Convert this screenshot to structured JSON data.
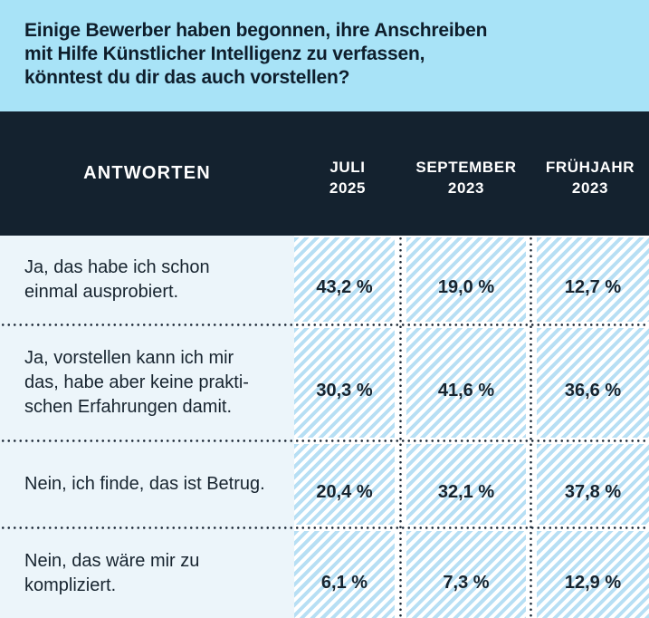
{
  "question": {
    "text": "Einige Bewerber haben begonnen, ihre Anschreiben\nmit Hilfe Künstlicher Intelligenz zu verfassen,\nkönntest du dir das auch vorstellen?"
  },
  "table": {
    "header": {
      "answers_label": "ANTWORTEN",
      "columns": [
        {
          "label": "JULI\n2025"
        },
        {
          "label": "SEPTEMBER\n2023"
        },
        {
          "label": "FRÜHJAHR\n2023"
        }
      ]
    },
    "rows": [
      {
        "answer": "Ja, das habe ich schon\neinmal ausprobiert.",
        "values": [
          "43,2 %",
          "19,0 %",
          "12,7 %"
        ]
      },
      {
        "answer": "Ja, vorstellen kann ich mir\ndas, habe aber keine prakti-\nschen Erfahrungen damit.",
        "values": [
          "30,3 %",
          "41,6 %",
          "36,6 %"
        ]
      },
      {
        "answer": "Nein, ich finde, das ist Betrug.",
        "values": [
          "20,4 %",
          "32,1 %",
          "37,8 %"
        ]
      },
      {
        "answer": "Nein, das wäre mir zu\nkompliziert.",
        "values": [
          "6,1 %",
          "7,3 %",
          "12,9 %"
        ]
      }
    ]
  },
  "colors": {
    "question_bg": "#a8e3f7",
    "header_bg": "#14222f",
    "answer_column_bg": "#ecf5fa",
    "stripe_blue": "#b7dff4",
    "text_dark": "#17242f"
  },
  "chart_data": {
    "type": "table",
    "title": "Einige Bewerber haben begonnen, ihre Anschreiben mit Hilfe Künstlicher Intelligenz zu verfassen, könntest du dir das auch vorstellen?",
    "categories": [
      "Juli 2025",
      "September 2023",
      "Frühjahr 2023"
    ],
    "series": [
      {
        "name": "Ja, das habe ich schon einmal ausprobiert.",
        "values": [
          43.2,
          19.0,
          12.7
        ]
      },
      {
        "name": "Ja, vorstellen kann ich mir das, habe aber keine praktischen Erfahrungen damit.",
        "values": [
          30.3,
          41.6,
          36.6
        ]
      },
      {
        "name": "Nein, ich finde, das ist Betrug.",
        "values": [
          20.4,
          32.1,
          37.8
        ]
      },
      {
        "name": "Nein, das wäre mir zu kompliziert.",
        "values": [
          6.1,
          7.3,
          12.9
        ]
      }
    ],
    "unit": "%",
    "legend_position": "none",
    "grid": false
  }
}
